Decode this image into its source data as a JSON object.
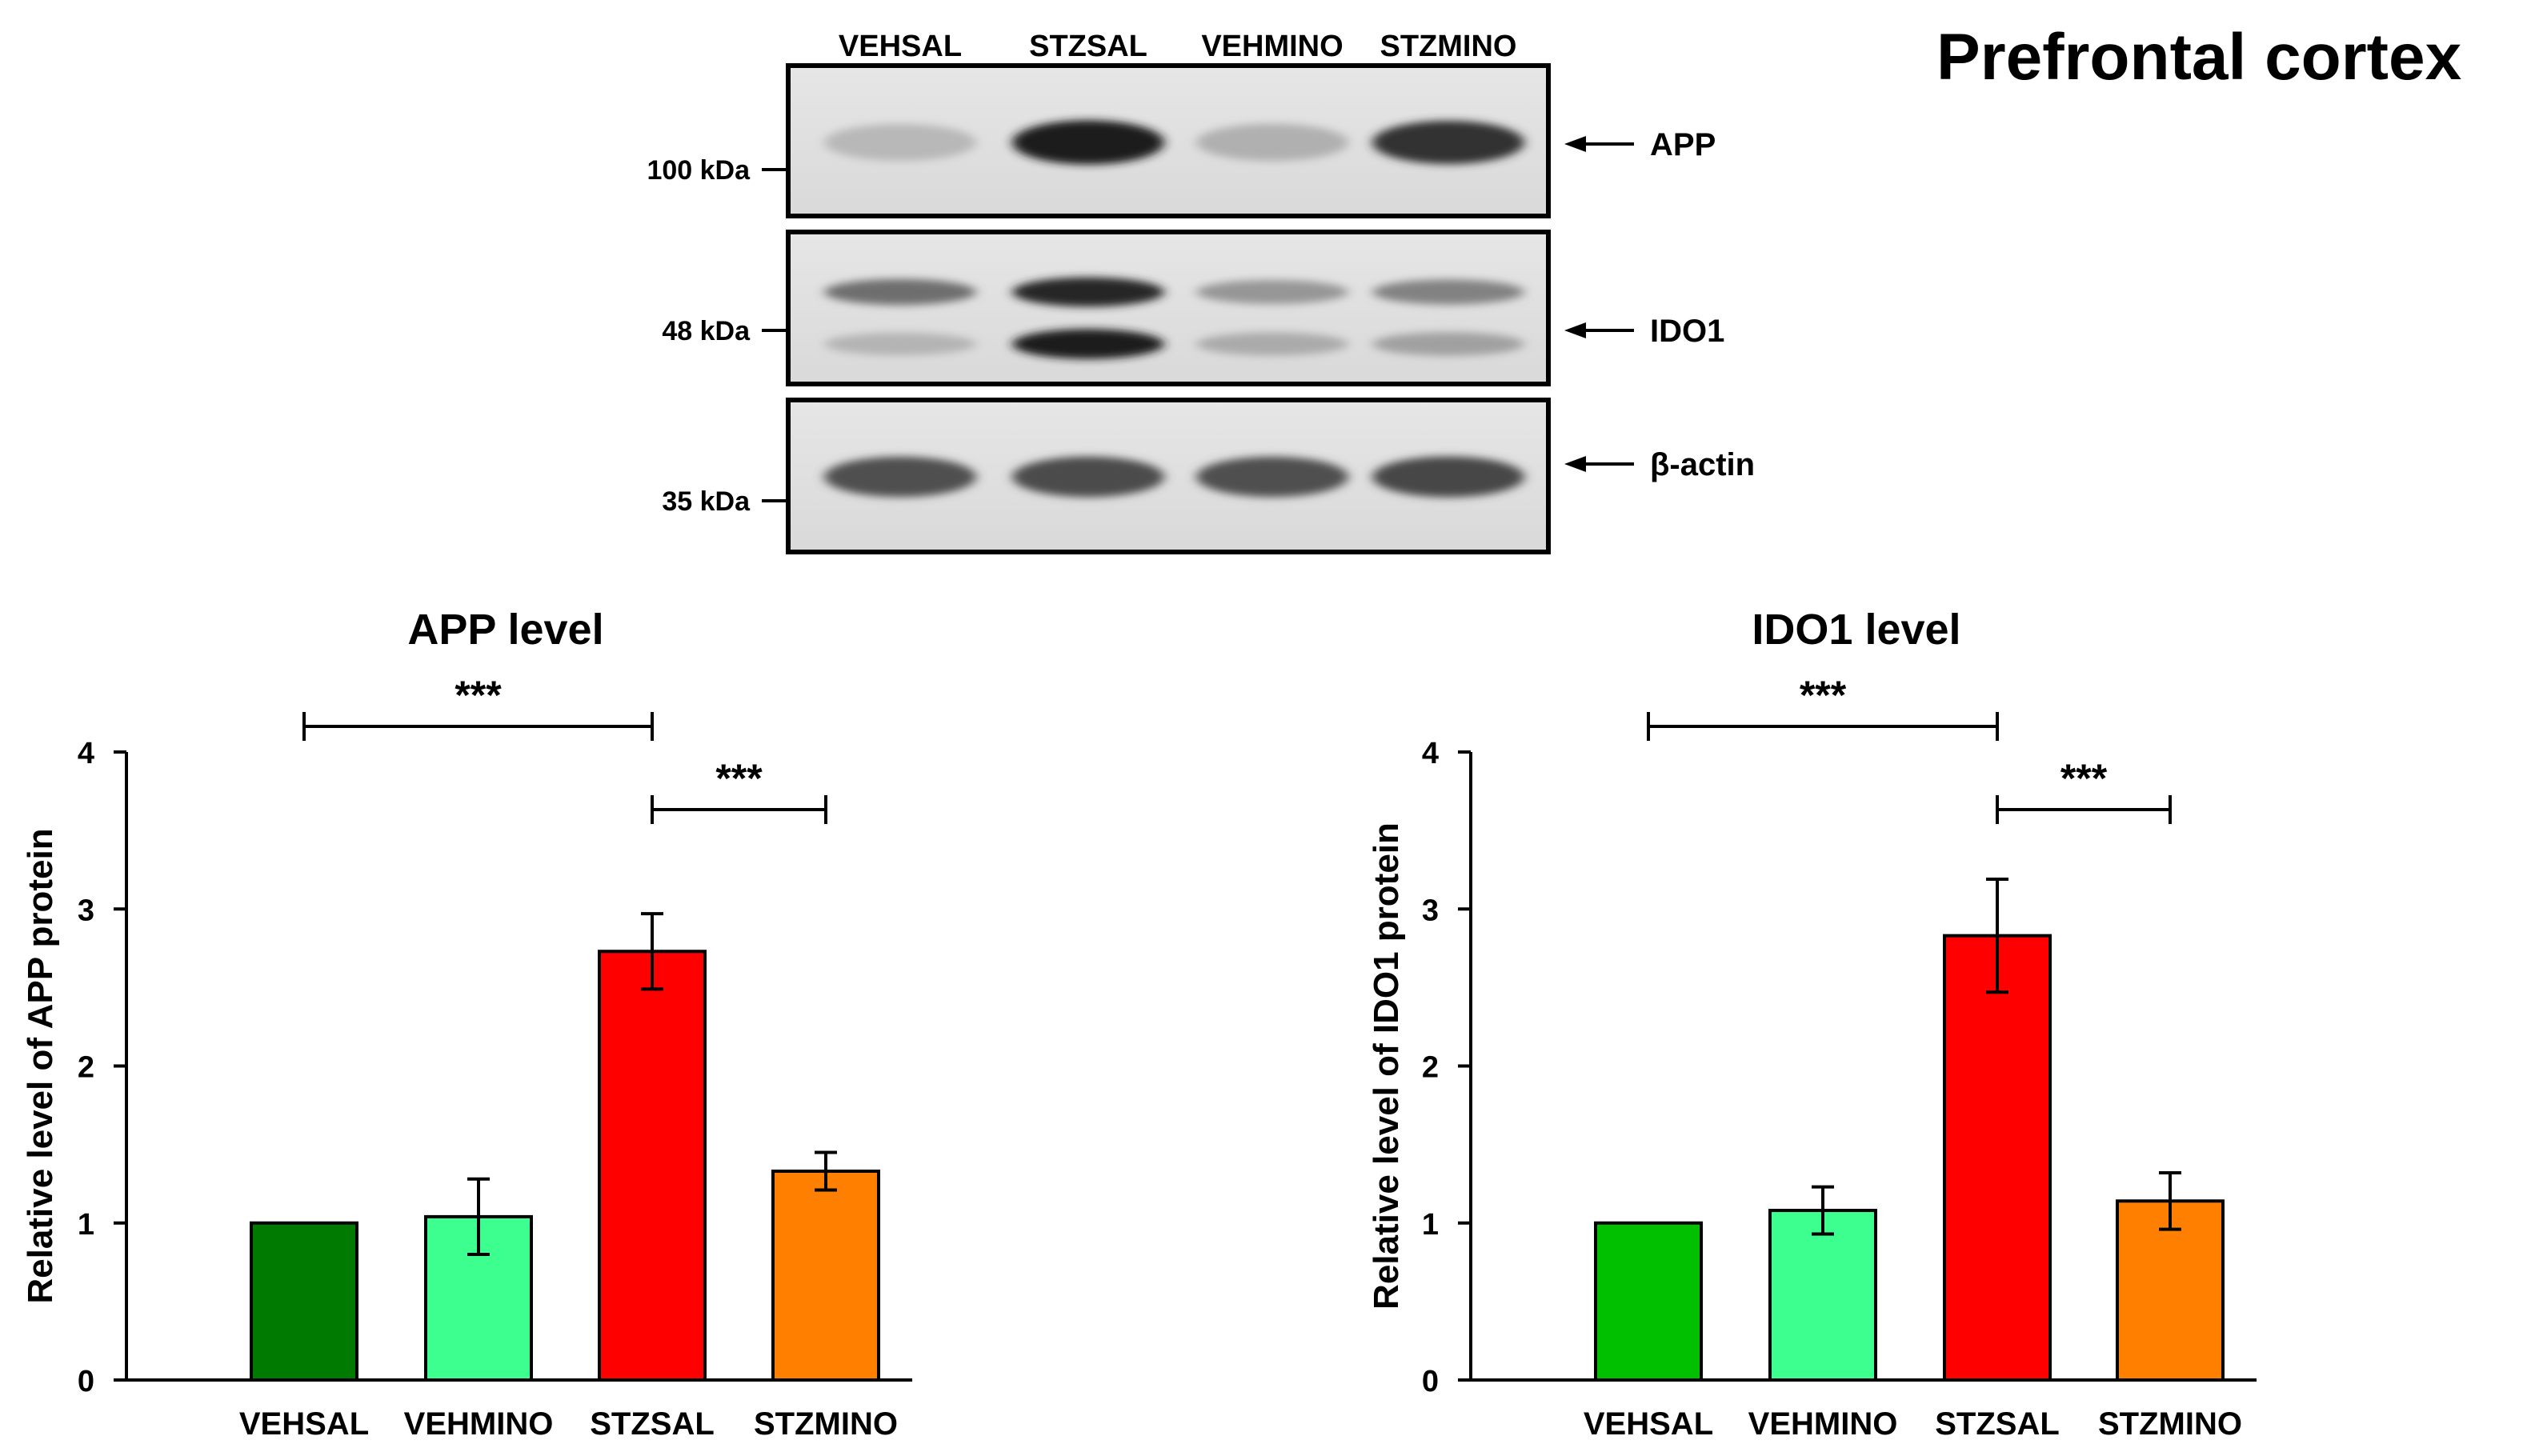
{
  "page_title": "Prefrontal cortex",
  "blot": {
    "lanes": [
      "VEHSAL",
      "STZSAL",
      "VEHMINO",
      "STZMINO"
    ],
    "panels": [
      {
        "protein": "APP",
        "marker": "100 kDa",
        "band_intensity": [
          0.18,
          0.95,
          0.22,
          0.85
        ]
      },
      {
        "protein": "IDO1",
        "marker": "48 kDa",
        "band_intensity": [
          0.55,
          0.9,
          0.35,
          0.45
        ],
        "lower_band_intensity": [
          0.2,
          0.95,
          0.25,
          0.3
        ]
      },
      {
        "protein": "β-actin",
        "marker": "35 kDa",
        "band_intensity": [
          0.7,
          0.72,
          0.7,
          0.75
        ]
      }
    ]
  },
  "chart_data": [
    {
      "type": "bar",
      "title": "APP level",
      "ylabel": "Relative level of APP protein",
      "xlabel": "",
      "ylim": [
        0,
        4
      ],
      "yticks": [
        "0",
        "1",
        "2",
        "3",
        "4"
      ],
      "categories": [
        "VEHSAL",
        "VEHMINO",
        "STZSAL",
        "STZMINO"
      ],
      "values": [
        1.0,
        1.04,
        2.73,
        1.33
      ],
      "errors": [
        0,
        0.24,
        0.24,
        0.12
      ],
      "colors": [
        "#007A00",
        "#3DFF8F",
        "#FF0000",
        "#FF8000"
      ],
      "significance": [
        {
          "from": 0,
          "to": 2,
          "label": "***"
        },
        {
          "from": 2,
          "to": 3,
          "label": "***"
        }
      ]
    },
    {
      "type": "bar",
      "title": "IDO1 level",
      "ylabel": "Relative level of IDO1 protein",
      "xlabel": "",
      "ylim": [
        0,
        4
      ],
      "yticks": [
        "0",
        "1",
        "2",
        "3",
        "4"
      ],
      "categories": [
        "VEHSAL",
        "VEHMINO",
        "STZSAL",
        "STZMINO"
      ],
      "values": [
        1.0,
        1.08,
        2.83,
        1.14
      ],
      "errors": [
        0,
        0.15,
        0.36,
        0.18
      ],
      "colors": [
        "#00C000",
        "#3DFF8F",
        "#FF0000",
        "#FF8000"
      ],
      "significance": [
        {
          "from": 0,
          "to": 2,
          "label": "***"
        },
        {
          "from": 2,
          "to": 3,
          "label": "***"
        }
      ]
    }
  ]
}
